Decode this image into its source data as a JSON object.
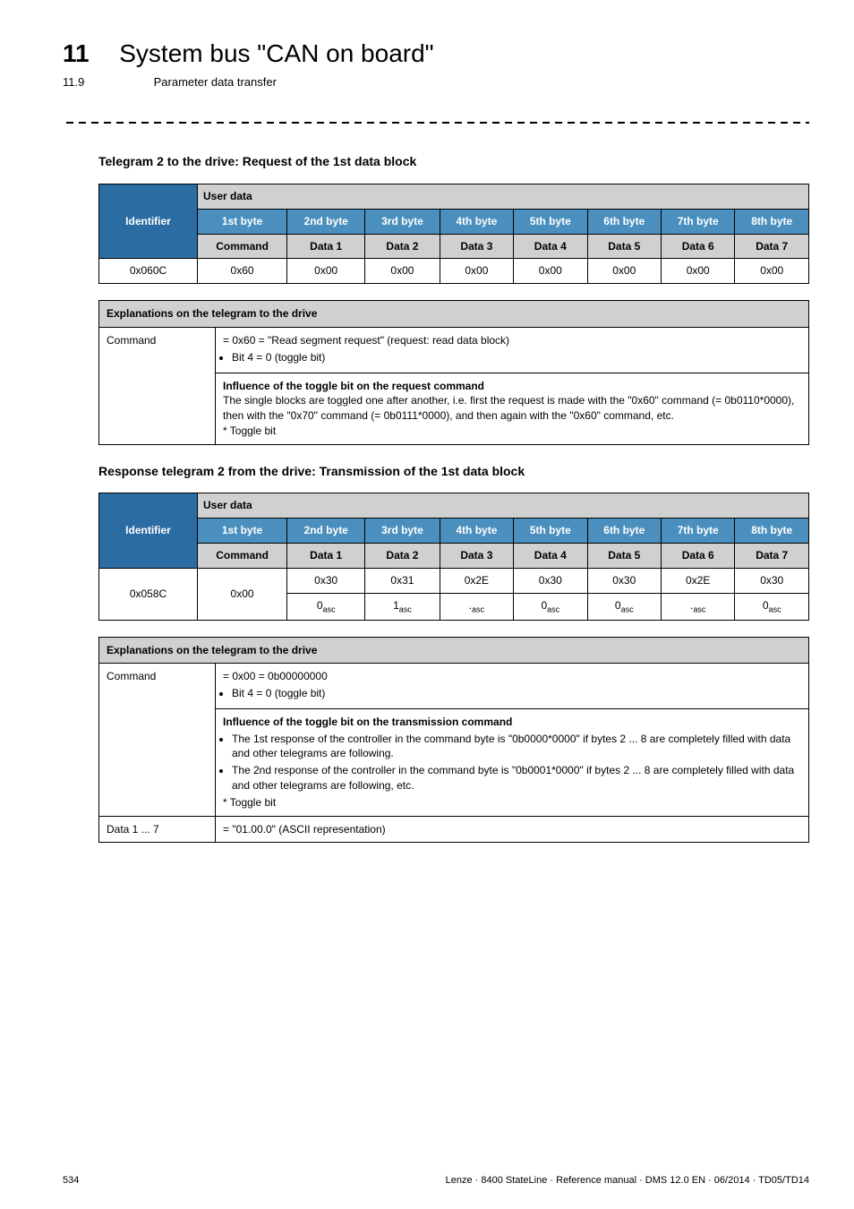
{
  "chapter": {
    "num": "11",
    "title": "System bus \"CAN on board\""
  },
  "section": {
    "num": "11.9",
    "title": "Parameter data transfer"
  },
  "sub1": "Telegram 2 to the drive: Request of the 1st data block",
  "table1": {
    "toprow": [
      "Identifier",
      "User data"
    ],
    "bytes": [
      "1st byte",
      "2nd byte",
      "3rd byte",
      "4th byte",
      "5th byte",
      "6th byte",
      "7th byte",
      "8th byte"
    ],
    "labels": [
      "Command",
      "Data 1",
      "Data 2",
      "Data 3",
      "Data 4",
      "Data 5",
      "Data 6",
      "Data 7"
    ],
    "row": [
      "0x060C",
      "0x60",
      "0x00",
      "0x00",
      "0x00",
      "0x00",
      "0x00",
      "0x00",
      "0x00"
    ]
  },
  "expl1": {
    "header": "Explanations on the telegram to the drive",
    "r1_label": "Command",
    "r1_line1": "= 0x60 = \"Read segment request\" (request: read data block)",
    "r1_bullet": "Bit 4 = 0 (toggle bit)",
    "r2_title": "Influence of the toggle bit on the request command",
    "r2_line1": "The single blocks are toggled one after another, i.e. first the request is made with the \"0x60\" command (= 0b0110*0000), then with the \"0x70\" command (= 0b0111*0000), and then again with the \"0x60\" command, etc.",
    "r2_foot": "* Toggle bit"
  },
  "sub2": "Response telegram 2 from the drive: Transmission of the 1st data block",
  "table2": {
    "toprow": [
      "Identifier",
      "User data"
    ],
    "bytes": [
      "1st byte",
      "2nd byte",
      "3rd byte",
      "4th byte",
      "5th byte",
      "6th byte",
      "7th byte",
      "8th byte"
    ],
    "labels": [
      "Command",
      "Data 1",
      "Data 2",
      "Data 3",
      "Data 4",
      "Data 5",
      "Data 6",
      "Data 7"
    ],
    "row1": [
      "0x058C",
      "0x00",
      "0x30",
      "0x31",
      "0x2E",
      "0x30",
      "0x30",
      "0x2E",
      "0x30"
    ],
    "row2": [
      "",
      "",
      {
        "n": "0",
        "s": "asc"
      },
      {
        "n": "1",
        "s": "asc"
      },
      {
        "n": ".",
        "s": "asc"
      },
      {
        "n": "0",
        "s": "asc"
      },
      {
        "n": "0",
        "s": "asc"
      },
      {
        "n": ".",
        "s": "asc"
      },
      {
        "n": "0",
        "s": "asc"
      }
    ]
  },
  "expl2": {
    "header": "Explanations on the telegram to the drive",
    "r1_label": "Command",
    "r1_line1": "= 0x00 = 0b00000000",
    "r1_bullet": "Bit 4 = 0 (toggle bit)",
    "r2_title": "Influence of the toggle bit on the transmission command",
    "r2_b1": "The 1st response of the controller in the command byte is \"0b0000*0000\" if bytes 2 ... 8 are completely filled with data and other telegrams are following.",
    "r2_b2": "The 2nd response of the controller in the command byte is \"0b0001*0000\" if bytes 2 ... 8 are completely filled with data and other telegrams are following, etc.",
    "r2_foot": "* Toggle bit",
    "r3_label": "Data 1 ... 7",
    "r3_val": "= \"01.00.0\" (ASCII representation)"
  },
  "footer": {
    "page": "534",
    "ref": "Lenze · 8400 StateLine · Reference manual · DMS 12.0 EN · 06/2014 · TD05/TD14"
  }
}
